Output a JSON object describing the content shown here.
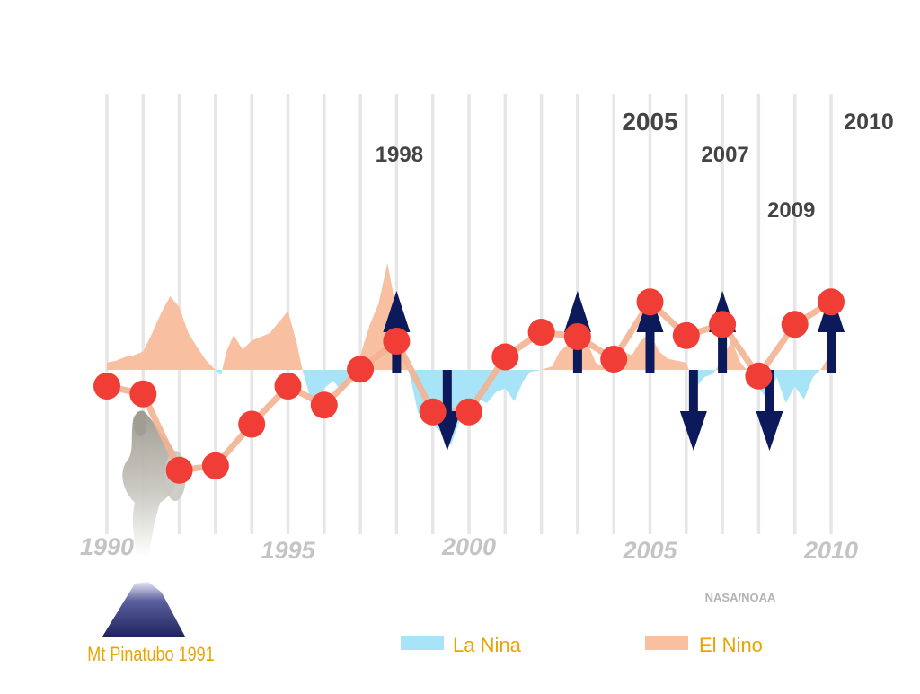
{
  "chart_data": {
    "type": "line",
    "x": [
      1990,
      1991,
      1992,
      1993,
      1994,
      1995,
      1996,
      1997,
      1998,
      1999,
      2000,
      2001,
      2002,
      2003,
      2004,
      2005,
      2006,
      2007,
      2008,
      2009,
      2010
    ],
    "series": [
      {
        "values": [
          -0.2,
          -0.27,
          -0.95,
          -0.91,
          -0.54,
          -0.2,
          -0.37,
          -0.05,
          0.2,
          -0.43,
          -0.43,
          0.06,
          0.28,
          0.24,
          0.04,
          0.55,
          0.25,
          0.35,
          -0.11,
          0.35,
          0.55
        ],
        "color": "#f03d36",
        "line_color": "#f2b393"
      }
    ],
    "year_tick_labels": [
      "1990",
      "1995",
      "2000",
      "2005",
      "2010"
    ],
    "point_labels": [
      {
        "year": 1998,
        "text": "1998"
      },
      {
        "year": 2005,
        "text": "2005"
      },
      {
        "year": 2007,
        "text": "2007"
      },
      {
        "year": 2009,
        "text": "2009"
      },
      {
        "year": 2010,
        "text": "2010"
      }
    ],
    "enso_index": {
      "x": [
        1990.0,
        1990.25,
        1990.5,
        1990.75,
        1991.0,
        1991.25,
        1991.5,
        1991.75,
        1992.0,
        1992.25,
        1992.5,
        1992.75,
        1993.0,
        1993.15,
        1993.3,
        1993.5,
        1993.75,
        1994.0,
        1994.25,
        1994.5,
        1994.75,
        1995.0,
        1995.25,
        1995.4,
        1995.6,
        1995.8,
        1996.0,
        1996.25,
        1996.5,
        1996.75,
        1997.0,
        1997.25,
        1997.5,
        1997.75,
        1998.0,
        1998.2,
        1998.4,
        1998.6,
        1998.8,
        1999.0,
        1999.25,
        1999.5,
        1999.75,
        2000.0,
        2000.25,
        2000.5,
        2000.75,
        2001.0,
        2001.25,
        2001.5,
        2001.7,
        2002.0,
        2002.3,
        2002.5,
        2002.75,
        2003.0,
        2003.25,
        2003.5,
        2003.75,
        2004.0,
        2004.25,
        2004.5,
        2004.75,
        2005.0,
        2005.25,
        2005.5,
        2005.75,
        2006.0,
        2006.25,
        2006.5,
        2006.75,
        2007.0,
        2007.25,
        2007.5,
        2007.75,
        2008.0,
        2008.25,
        2008.5,
        2008.75,
        2009.0,
        2009.25,
        2009.5,
        2009.75,
        2010.0
      ],
      "values": [
        0.2,
        0.25,
        0.35,
        0.4,
        0.5,
        1.0,
        1.55,
        2.0,
        1.7,
        1.0,
        0.6,
        0.25,
        0.0,
        -0.15,
        0.5,
        0.95,
        0.55,
        0.8,
        0.9,
        1.0,
        1.3,
        1.6,
        0.7,
        0.0,
        -0.7,
        -0.9,
        -0.5,
        -0.3,
        -0.6,
        -0.1,
        0.4,
        1.2,
        1.8,
        2.9,
        1.6,
        0.5,
        -0.3,
        -1.2,
        -1.0,
        -1.5,
        -1.7,
        -2.05,
        -1.35,
        -1.1,
        -0.8,
        -0.9,
        -0.6,
        -0.5,
        -0.85,
        -0.3,
        -0.05,
        0.0,
        0.1,
        0.5,
        0.7,
        1.1,
        0.8,
        0.2,
        0.05,
        0.7,
        0.5,
        0.4,
        0.8,
        1.0,
        0.5,
        0.3,
        0.25,
        0.2,
        -0.5,
        -0.2,
        -0.1,
        0.3,
        0.8,
        0.2,
        -0.1,
        -0.5,
        -0.8,
        -0.2,
        -0.9,
        -0.45,
        -0.8,
        -0.2,
        0.05,
        0.5
      ],
      "positive_color": "#f8bfa0",
      "negative_color": "#a8e4f7"
    },
    "arrows": [
      {
        "year": 1998,
        "direction": "up"
      },
      {
        "year": 1999.4,
        "direction": "down"
      },
      {
        "year": 2003,
        "direction": "up"
      },
      {
        "year": 2005,
        "direction": "up"
      },
      {
        "year": 2006.2,
        "direction": "down"
      },
      {
        "year": 2007,
        "direction": "up"
      },
      {
        "year": 2008.3,
        "direction": "down"
      },
      {
        "year": 2010,
        "direction": "up"
      }
    ],
    "arrow_color": "#0c1a5b",
    "grid": true,
    "grid_color": "#e6e6e6"
  },
  "annotations": {
    "source": "NASA/NOAA",
    "volcano_label": "Mt Pinatubo 1991"
  },
  "legend": {
    "items": [
      {
        "label": "La Nina",
        "color": "#a8e4f7"
      },
      {
        "label": "El Nino",
        "color": "#f8bfa0"
      }
    ],
    "text_color": "#e8a400"
  }
}
